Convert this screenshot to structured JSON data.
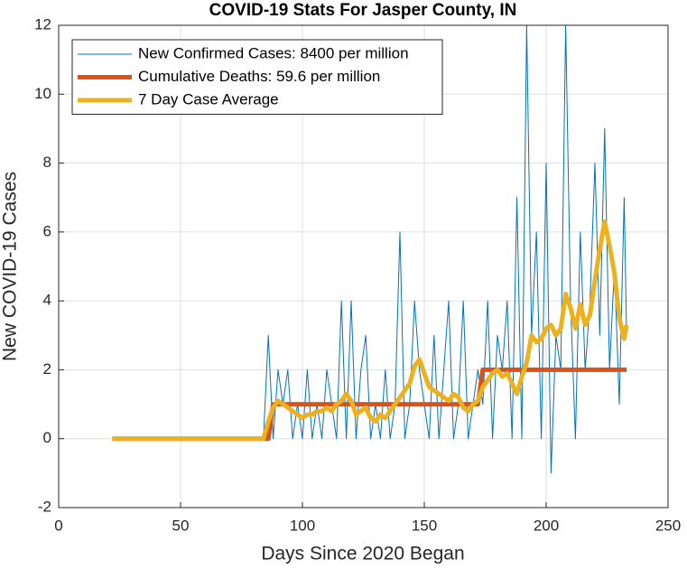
{
  "chart_data": {
    "type": "line",
    "title": "COVID-19 Stats For Jasper County, IN",
    "x_label": "Days Since 2020 Began",
    "y_label": "New COVID-19 Cases",
    "x": [
      22,
      84,
      86,
      88,
      90,
      92,
      94,
      96,
      98,
      100,
      102,
      104,
      106,
      108,
      110,
      112,
      114,
      116,
      118,
      120,
      122,
      124,
      126,
      128,
      130,
      132,
      134,
      136,
      138,
      140,
      142,
      144,
      146,
      148,
      150,
      152,
      154,
      156,
      158,
      160,
      162,
      164,
      166,
      168,
      170,
      172,
      174,
      176,
      178,
      180,
      182,
      184,
      186,
      188,
      190,
      192,
      194,
      196,
      198,
      200,
      202,
      204,
      206,
      208,
      210,
      212,
      214,
      216,
      218,
      220,
      222,
      224,
      226,
      228,
      230,
      232,
      233
    ],
    "series": [
      {
        "name": "New Confirmed Cases: 8400 per million",
        "color": "#0072bd",
        "width": 1,
        "values": [
          0,
          0,
          3,
          0,
          2,
          1,
          2,
          0,
          1,
          0,
          2,
          0,
          1,
          0,
          2,
          1,
          0,
          4,
          0,
          4,
          0,
          2,
          3,
          0,
          1,
          0,
          2,
          0,
          1,
          6,
          0,
          1,
          4,
          2,
          1,
          0,
          3,
          0,
          2,
          4,
          0,
          1,
          4,
          0,
          1,
          2,
          1,
          4,
          0,
          3,
          2,
          4,
          0,
          7,
          0,
          12,
          3,
          6,
          0,
          8,
          -1,
          3,
          2,
          12,
          4,
          0,
          6,
          2,
          4,
          8,
          3,
          9,
          2,
          5,
          1,
          7,
          3
        ]
      },
      {
        "name": "Cumulative Deaths: 59.6 per million",
        "color": "#d95319",
        "width": 5,
        "values": [
          0,
          0,
          0,
          1,
          1,
          1,
          1,
          1,
          1,
          1,
          1,
          1,
          1,
          1,
          1,
          1,
          1,
          1,
          1,
          1,
          1,
          1,
          1,
          1,
          1,
          1,
          1,
          1,
          1,
          1,
          1,
          1,
          1,
          1,
          1,
          1,
          1,
          1,
          1,
          1,
          1,
          1,
          1,
          1,
          1,
          1,
          2,
          2,
          2,
          2,
          2,
          2,
          2,
          2,
          2,
          2,
          2,
          2,
          2,
          2,
          2,
          2,
          2,
          2,
          2,
          2,
          2,
          2,
          2,
          2,
          2,
          2,
          2,
          2,
          2,
          2,
          2
        ]
      },
      {
        "name": "7 Day Case Average",
        "color": "#edb120",
        "width": 5,
        "values": [
          0,
          0,
          0.5,
          0.9,
          1.1,
          1.0,
          0.9,
          0.8,
          0.7,
          0.6,
          0.7,
          0.7,
          0.8,
          0.8,
          0.9,
          0.8,
          1.0,
          1.1,
          1.3,
          1.1,
          0.7,
          0.8,
          0.9,
          0.6,
          0.5,
          0.7,
          0.6,
          0.8,
          1.0,
          1.2,
          1.4,
          1.6,
          2.1,
          2.3,
          1.9,
          1.5,
          1.4,
          1.3,
          1.2,
          1.1,
          1.3,
          1.2,
          0.9,
          0.8,
          1.0,
          1.1,
          1.5,
          1.7,
          1.9,
          2.0,
          1.8,
          1.9,
          1.6,
          1.3,
          1.8,
          2.2,
          3.0,
          2.8,
          2.9,
          3.2,
          3.3,
          3.0,
          3.2,
          4.2,
          3.8,
          3.2,
          3.9,
          3.3,
          3.6,
          4.6,
          5.5,
          6.3,
          5.6,
          4.8,
          3.5,
          2.9,
          3.3
        ]
      }
    ],
    "xlim": [
      0,
      250
    ],
    "xticks": [
      0,
      50,
      100,
      150,
      200,
      250
    ],
    "ylim": [
      -2,
      12
    ],
    "yticks": [
      -2,
      0,
      2,
      4,
      6,
      8,
      10,
      12
    ],
    "grid": true,
    "legend": "upper left"
  }
}
